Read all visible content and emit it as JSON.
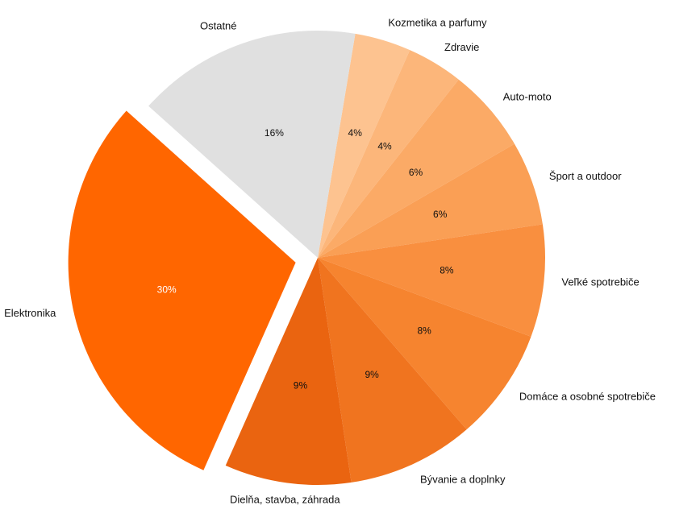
{
  "chart_data": {
    "type": "pie",
    "title": "",
    "slices": [
      {
        "name": "Kozmetika a parfumy",
        "value": 4,
        "label": "4%",
        "color": "#fdc390",
        "text_color": "#111111"
      },
      {
        "name": "Zdravie",
        "value": 4,
        "label": "4%",
        "color": "#fcb67a",
        "text_color": "#111111"
      },
      {
        "name": "Auto-moto",
        "value": 6,
        "label": "6%",
        "color": "#fbaa66",
        "text_color": "#111111"
      },
      {
        "name": "Šport a outdoor",
        "value": 6,
        "label": "6%",
        "color": "#fa9f55",
        "text_color": "#111111"
      },
      {
        "name": "Veľké spotrebiče",
        "value": 8,
        "label": "8%",
        "color": "#f98f3f",
        "text_color": "#111111"
      },
      {
        "name": "Domáce a osobné spotrebiče",
        "value": 8,
        "label": "8%",
        "color": "#f6842f",
        "text_color": "#111111"
      },
      {
        "name": "Bývanie a doplnky",
        "value": 9,
        "label": "9%",
        "color": "#f0741f",
        "text_color": "#111111"
      },
      {
        "name": "Dielňa, stavba, záhrada",
        "value": 9,
        "label": "9%",
        "color": "#ea6410",
        "text_color": "#111111"
      },
      {
        "name": "Elektronika",
        "value": 30,
        "label": "30%",
        "color": "#ff6600",
        "text_color": "#ffffff",
        "exploded": true
      },
      {
        "name": "Ostatné",
        "value": 16,
        "label": "16%",
        "color": "#e0e0e0",
        "text_color": "#111111"
      }
    ]
  }
}
